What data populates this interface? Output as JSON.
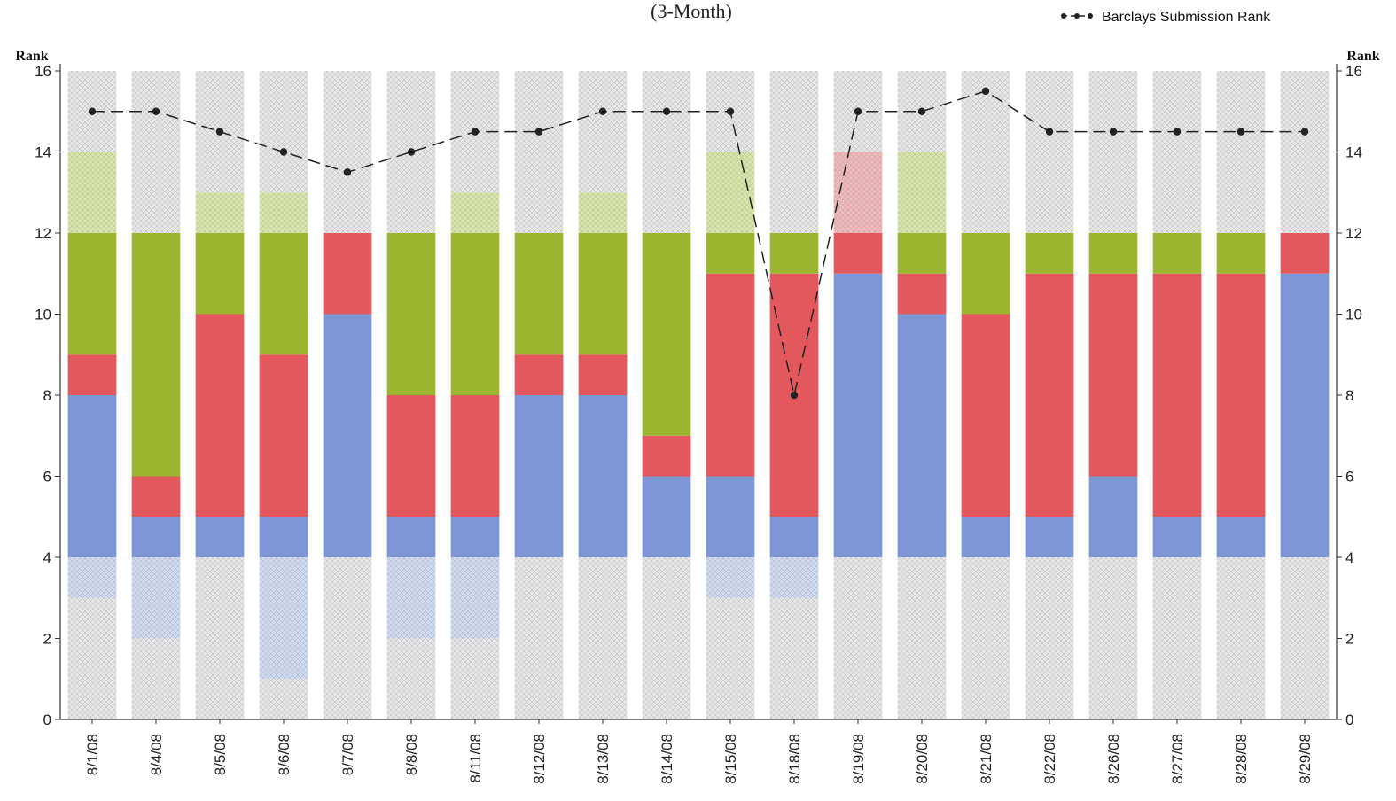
{
  "chart_data": {
    "type": "bar",
    "title": "(3-Month)",
    "ylabel_left": "Rank",
    "ylabel_right": "Rank",
    "ylim": [
      0,
      16
    ],
    "yticks": [
      0,
      2,
      4,
      6,
      8,
      10,
      12,
      14,
      16
    ],
    "grid": false,
    "legend_position": "top-right",
    "categories": [
      "8/1/08",
      "8/4/08",
      "8/5/08",
      "8/6/08",
      "8/7/08",
      "8/8/08",
      "8/11/08",
      "8/12/08",
      "8/13/08",
      "8/14/08",
      "8/15/08",
      "8/18/08",
      "8/19/08",
      "8/20/08",
      "8/21/08",
      "8/22/08",
      "8/26/08",
      "8/27/08",
      "8/28/08",
      "8/29/08"
    ],
    "bands": [
      [
        [
          0,
          3,
          "grey"
        ],
        [
          3,
          4,
          "lightblue"
        ],
        [
          4,
          8,
          "blue"
        ],
        [
          8,
          9,
          "red"
        ],
        [
          9,
          12,
          "green"
        ],
        [
          12,
          14,
          "lightgreen"
        ],
        [
          14,
          16,
          "grey"
        ]
      ],
      [
        [
          0,
          2,
          "grey"
        ],
        [
          2,
          4,
          "lightblue"
        ],
        [
          4,
          5,
          "blue"
        ],
        [
          5,
          6,
          "red"
        ],
        [
          6,
          12,
          "green"
        ],
        [
          12,
          16,
          "grey"
        ]
      ],
      [
        [
          0,
          4,
          "grey"
        ],
        [
          4,
          5,
          "blue"
        ],
        [
          5,
          10,
          "red"
        ],
        [
          10,
          12,
          "green"
        ],
        [
          12,
          13,
          "lightgreen"
        ],
        [
          13,
          16,
          "grey"
        ]
      ],
      [
        [
          0,
          1,
          "grey"
        ],
        [
          1,
          4,
          "lightblue"
        ],
        [
          4,
          5,
          "blue"
        ],
        [
          5,
          9,
          "red"
        ],
        [
          9,
          12,
          "green"
        ],
        [
          12,
          13,
          "lightgreen"
        ],
        [
          13,
          16,
          "grey"
        ]
      ],
      [
        [
          0,
          4,
          "grey"
        ],
        [
          4,
          10,
          "blue"
        ],
        [
          10,
          12,
          "red"
        ],
        [
          12,
          16,
          "grey"
        ]
      ],
      [
        [
          0,
          2,
          "grey"
        ],
        [
          2,
          4,
          "lightblue"
        ],
        [
          4,
          5,
          "blue"
        ],
        [
          5,
          8,
          "red"
        ],
        [
          8,
          12,
          "green"
        ],
        [
          12,
          16,
          "grey"
        ]
      ],
      [
        [
          0,
          2,
          "grey"
        ],
        [
          2,
          4,
          "lightblue"
        ],
        [
          4,
          5,
          "blue"
        ],
        [
          5,
          8,
          "red"
        ],
        [
          8,
          12,
          "green"
        ],
        [
          12,
          13,
          "lightgreen"
        ],
        [
          13,
          16,
          "grey"
        ]
      ],
      [
        [
          0,
          4,
          "grey"
        ],
        [
          4,
          8,
          "blue"
        ],
        [
          8,
          9,
          "red"
        ],
        [
          9,
          12,
          "green"
        ],
        [
          12,
          16,
          "grey"
        ]
      ],
      [
        [
          0,
          4,
          "grey"
        ],
        [
          4,
          8,
          "blue"
        ],
        [
          8,
          9,
          "red"
        ],
        [
          9,
          12,
          "green"
        ],
        [
          12,
          13,
          "lightgreen"
        ],
        [
          13,
          16,
          "grey"
        ]
      ],
      [
        [
          0,
          4,
          "grey"
        ],
        [
          4,
          6,
          "blue"
        ],
        [
          6,
          7,
          "red"
        ],
        [
          7,
          12,
          "green"
        ],
        [
          12,
          16,
          "grey"
        ]
      ],
      [
        [
          0,
          3,
          "grey"
        ],
        [
          3,
          4,
          "lightblue"
        ],
        [
          4,
          6,
          "blue"
        ],
        [
          6,
          11,
          "red"
        ],
        [
          11,
          12,
          "green"
        ],
        [
          12,
          14,
          "lightgreen"
        ],
        [
          14,
          16,
          "grey"
        ]
      ],
      [
        [
          0,
          3,
          "grey"
        ],
        [
          3,
          4,
          "lightblue"
        ],
        [
          4,
          5,
          "blue"
        ],
        [
          5,
          11,
          "red"
        ],
        [
          11,
          12,
          "green"
        ],
        [
          12,
          16,
          "grey"
        ]
      ],
      [
        [
          0,
          4,
          "grey"
        ],
        [
          4,
          11,
          "blue"
        ],
        [
          11,
          12,
          "red"
        ],
        [
          12,
          14,
          "lightred"
        ],
        [
          14,
          16,
          "grey"
        ]
      ],
      [
        [
          0,
          4,
          "grey"
        ],
        [
          4,
          10,
          "blue"
        ],
        [
          10,
          11,
          "red"
        ],
        [
          11,
          12,
          "green"
        ],
        [
          12,
          14,
          "lightgreen"
        ],
        [
          14,
          16,
          "grey"
        ]
      ],
      [
        [
          0,
          4,
          "grey"
        ],
        [
          4,
          5,
          "blue"
        ],
        [
          5,
          10,
          "red"
        ],
        [
          10,
          12,
          "green"
        ],
        [
          12,
          16,
          "grey"
        ]
      ],
      [
        [
          0,
          4,
          "grey"
        ],
        [
          4,
          5,
          "blue"
        ],
        [
          5,
          11,
          "red"
        ],
        [
          11,
          12,
          "green"
        ],
        [
          12,
          16,
          "grey"
        ]
      ],
      [
        [
          0,
          4,
          "grey"
        ],
        [
          4,
          6,
          "blue"
        ],
        [
          6,
          11,
          "red"
        ],
        [
          11,
          12,
          "green"
        ],
        [
          12,
          16,
          "grey"
        ]
      ],
      [
        [
          0,
          4,
          "grey"
        ],
        [
          4,
          5,
          "blue"
        ],
        [
          5,
          11,
          "red"
        ],
        [
          11,
          12,
          "green"
        ],
        [
          12,
          16,
          "grey"
        ]
      ],
      [
        [
          0,
          4,
          "grey"
        ],
        [
          4,
          5,
          "blue"
        ],
        [
          5,
          11,
          "red"
        ],
        [
          11,
          12,
          "green"
        ],
        [
          12,
          16,
          "grey"
        ]
      ],
      [
        [
          0,
          4,
          "grey"
        ],
        [
          4,
          11,
          "blue"
        ],
        [
          11,
          12,
          "red"
        ],
        [
          12,
          16,
          "grey"
        ]
      ]
    ],
    "series": [
      {
        "name": "Barclays Submission Rank",
        "type": "line",
        "style": "dashed-with-markers",
        "values": [
          15,
          15,
          14.5,
          14,
          13.5,
          14,
          14.5,
          14.5,
          15,
          15,
          15,
          8,
          15,
          15,
          15.5,
          14.5,
          14.5,
          14.5,
          14.5,
          14.5
        ]
      }
    ],
    "colors": {
      "blue": "#7e97d4",
      "red": "#e2585c",
      "green": "#9bb52f",
      "lightgreen": "#d7e6a8",
      "lightblue": "#cfd9f0",
      "lightred": "#f1b9b9",
      "grey": "#e6e6e8",
      "line": "#222222"
    }
  }
}
